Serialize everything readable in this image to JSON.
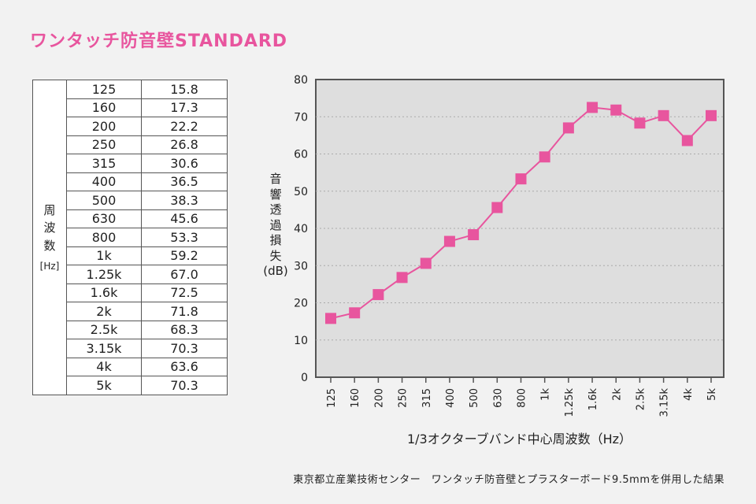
{
  "title": "ワンタッチ防音壁STANDARD",
  "table": {
    "header_chars": [
      "周",
      "波",
      "数"
    ],
    "header_unit": "[Hz]",
    "rows": [
      {
        "freq": "125",
        "value": "15.8"
      },
      {
        "freq": "160",
        "value": "17.3"
      },
      {
        "freq": "200",
        "value": "22.2"
      },
      {
        "freq": "250",
        "value": "26.8"
      },
      {
        "freq": "315",
        "value": "30.6"
      },
      {
        "freq": "400",
        "value": "36.5"
      },
      {
        "freq": "500",
        "value": "38.3"
      },
      {
        "freq": "630",
        "value": "45.6"
      },
      {
        "freq": "800",
        "value": "53.3"
      },
      {
        "freq": "1k",
        "value": "59.2"
      },
      {
        "freq": "1.25k",
        "value": "67.0"
      },
      {
        "freq": "1.6k",
        "value": "72.5"
      },
      {
        "freq": "2k",
        "value": "71.8"
      },
      {
        "freq": "2.5k",
        "value": "68.3"
      },
      {
        "freq": "3.15k",
        "value": "70.3"
      },
      {
        "freq": "4k",
        "value": "63.6"
      },
      {
        "freq": "5k",
        "value": "70.3"
      }
    ]
  },
  "chart_data": {
    "type": "line",
    "title": "",
    "xlabel": "1/3オクターブバンド中心周波数（Hz）",
    "ylabel_chars": [
      "音",
      "響",
      "透",
      "過",
      "損",
      "失"
    ],
    "ylabel_unit": "(dB)",
    "categories": [
      "125",
      "160",
      "200",
      "250",
      "315",
      "400",
      "500",
      "630",
      "800",
      "1k",
      "1.25k",
      "1.6k",
      "2k",
      "2.5k",
      "3.15k",
      "4k",
      "5k"
    ],
    "series": [
      {
        "name": "音響透過損失",
        "values": [
          15.8,
          17.3,
          22.2,
          26.8,
          30.6,
          36.5,
          38.3,
          45.6,
          53.3,
          59.2,
          67.0,
          72.5,
          71.8,
          68.3,
          70.3,
          63.6,
          70.3
        ]
      }
    ],
    "ylim": [
      0,
      80
    ],
    "yticks": [
      0,
      10,
      20,
      30,
      40,
      50,
      60,
      70,
      80
    ],
    "grid": true,
    "marker": "square"
  },
  "footnote": "東京都立産業技術センター　ワンタッチ防音壁とプラスターボード9.5mmを併用した結果",
  "colors": {
    "accent": "#e8559e",
    "plot_bg": "#dedede",
    "axis": "#555555",
    "grid": "#aaaaaa"
  }
}
